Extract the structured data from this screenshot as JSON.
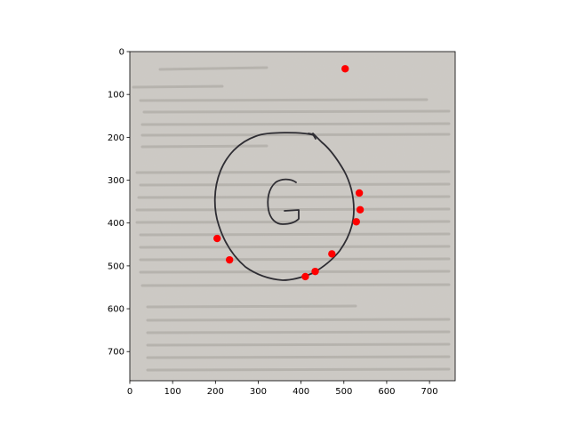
{
  "chart_data": {
    "type": "scatter",
    "title": "",
    "xlabel": "",
    "ylabel": "",
    "xlim": [
      0,
      760
    ],
    "ylim": [
      768,
      0
    ],
    "y_inverted": true,
    "grid": false,
    "legend": "none",
    "x_ticks": [
      0,
      100,
      200,
      300,
      400,
      500,
      600,
      700
    ],
    "y_ticks": [
      0,
      100,
      200,
      300,
      400,
      500,
      600,
      700
    ],
    "background": "photo of a hand-drawn letter G on printed paper",
    "marker_color": "#ff0000",
    "series": [
      {
        "name": "",
        "points": [
          {
            "x": 503,
            "y": 40
          },
          {
            "x": 536,
            "y": 330
          },
          {
            "x": 538,
            "y": 369
          },
          {
            "x": 529,
            "y": 397
          },
          {
            "x": 472,
            "y": 472
          },
          {
            "x": 433,
            "y": 513
          },
          {
            "x": 410,
            "y": 525
          },
          {
            "x": 233,
            "y": 486
          },
          {
            "x": 204,
            "y": 436
          }
        ]
      }
    ]
  }
}
